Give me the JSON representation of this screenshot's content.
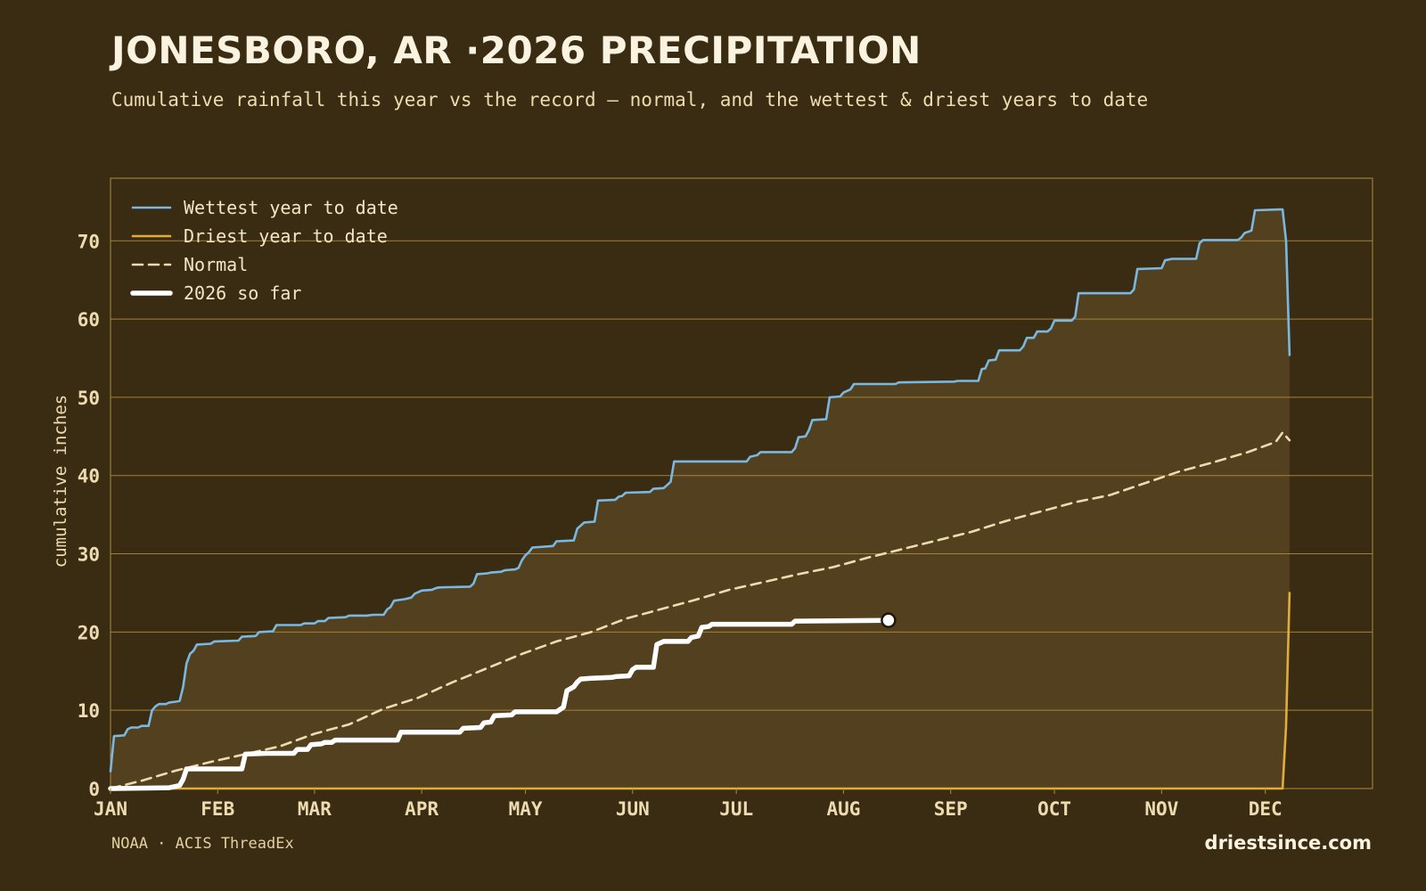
{
  "header": {
    "title": "JONESBORO, AR ·2026 PRECIPITATION",
    "subtitle": "Cumulative rainfall this year vs the record — normal, and the wettest & driest years to date"
  },
  "footer": {
    "source": "NOAA · ACIS ThreadEx",
    "site": "driestsince.com"
  },
  "colors": {
    "background": "#3a2c13",
    "wettest": "#7ab8e0",
    "driest": "#e0ac3c",
    "normal": "#eedcb0",
    "current": "#ffffff",
    "band_fill": "#53401e",
    "frame": "#b08a3a",
    "tick_text": "#eedcb0"
  },
  "chart_data": {
    "type": "line",
    "ylabel": "cumulative inches",
    "xlabel": "",
    "x_unit": "day_of_year",
    "xlim": [
      1,
      366
    ],
    "ylim": [
      0,
      78
    ],
    "y_ticks": [
      0,
      10,
      20,
      30,
      40,
      50,
      60,
      70
    ],
    "x_ticks": [
      {
        "label": "JAN",
        "day": 1
      },
      {
        "label": "FEB",
        "day": 32
      },
      {
        "label": "MAR",
        "day": 60
      },
      {
        "label": "APR",
        "day": 91
      },
      {
        "label": "MAY",
        "day": 121
      },
      {
        "label": "JUN",
        "day": 152
      },
      {
        "label": "JUL",
        "day": 182
      },
      {
        "label": "AUG",
        "day": 213
      },
      {
        "label": "SEP",
        "day": 244
      },
      {
        "label": "OCT",
        "day": 274
      },
      {
        "label": "NOV",
        "day": 305
      },
      {
        "label": "DEC",
        "day": 335
      }
    ],
    "grid": true,
    "legend_position": "top-left",
    "series": [
      {
        "name": "Wettest year to date",
        "style": "solid",
        "points": [
          [
            1,
            2.2
          ],
          [
            2,
            6.7
          ],
          [
            5,
            6.8
          ],
          [
            6,
            7.6
          ],
          [
            7,
            7.8
          ],
          [
            9,
            7.8
          ],
          [
            10,
            8.0
          ],
          [
            12,
            8.0
          ],
          [
            13,
            10.0
          ],
          [
            14,
            10.5
          ],
          [
            15,
            10.8
          ],
          [
            17,
            10.8
          ],
          [
            18,
            11.0
          ],
          [
            20,
            11.1
          ],
          [
            21,
            11.2
          ],
          [
            22,
            13.0
          ],
          [
            23,
            16.0
          ],
          [
            24,
            17.2
          ],
          [
            25,
            17.6
          ],
          [
            26,
            18.4
          ],
          [
            30,
            18.5
          ],
          [
            31,
            18.8
          ],
          [
            38,
            18.9
          ],
          [
            39,
            19.4
          ],
          [
            43,
            19.5
          ],
          [
            44,
            20.0
          ],
          [
            48,
            20.1
          ],
          [
            49,
            20.9
          ],
          [
            56,
            20.9
          ],
          [
            57,
            21.1
          ],
          [
            60,
            21.1
          ],
          [
            61,
            21.4
          ],
          [
            63,
            21.4
          ],
          [
            64,
            21.8
          ],
          [
            69,
            21.9
          ],
          [
            70,
            22.1
          ],
          [
            75,
            22.1
          ],
          [
            77,
            22.2
          ],
          [
            80,
            22.2
          ],
          [
            81,
            22.9
          ],
          [
            82,
            23.2
          ],
          [
            83,
            24.0
          ],
          [
            86,
            24.2
          ],
          [
            88,
            24.4
          ],
          [
            89,
            24.9
          ],
          [
            90,
            25.1
          ],
          [
            91,
            25.3
          ],
          [
            94,
            25.4
          ],
          [
            95,
            25.6
          ],
          [
            96,
            25.7
          ],
          [
            105,
            25.8
          ],
          [
            106,
            26.2
          ],
          [
            107,
            27.4
          ],
          [
            110,
            27.5
          ],
          [
            111,
            27.6
          ],
          [
            114,
            27.7
          ],
          [
            115,
            27.9
          ],
          [
            118,
            28.0
          ],
          [
            119,
            28.2
          ],
          [
            120,
            29.2
          ],
          [
            121,
            29.8
          ],
          [
            122,
            30.2
          ],
          [
            123,
            30.8
          ],
          [
            129,
            31.0
          ],
          [
            130,
            31.6
          ],
          [
            135,
            31.7
          ],
          [
            136,
            33.2
          ],
          [
            137,
            33.6
          ],
          [
            138,
            34.0
          ],
          [
            141,
            34.1
          ],
          [
            142,
            36.8
          ],
          [
            147,
            36.9
          ],
          [
            148,
            37.3
          ],
          [
            149,
            37.4
          ],
          [
            150,
            37.8
          ],
          [
            157,
            37.9
          ],
          [
            158,
            38.3
          ],
          [
            161,
            38.4
          ],
          [
            162,
            38.8
          ],
          [
            163,
            39.2
          ],
          [
            164,
            41.8
          ],
          [
            185,
            41.8
          ],
          [
            186,
            42.4
          ],
          [
            188,
            42.6
          ],
          [
            189,
            43.0
          ],
          [
            198,
            43.0
          ],
          [
            199,
            43.5
          ],
          [
            200,
            44.9
          ],
          [
            202,
            45.0
          ],
          [
            203,
            45.8
          ],
          [
            204,
            47.1
          ],
          [
            208,
            47.2
          ],
          [
            209,
            50.0
          ],
          [
            212,
            50.1
          ],
          [
            213,
            50.6
          ],
          [
            215,
            51.0
          ],
          [
            216,
            51.7
          ],
          [
            228,
            51.7
          ],
          [
            229,
            51.9
          ],
          [
            245,
            52.0
          ],
          [
            246,
            52.1
          ],
          [
            252,
            52.1
          ],
          [
            253,
            53.6
          ],
          [
            254,
            53.7
          ],
          [
            255,
            54.7
          ],
          [
            257,
            54.8
          ],
          [
            258,
            56.0
          ],
          [
            264,
            56.0
          ],
          [
            265,
            56.5
          ],
          [
            266,
            57.6
          ],
          [
            268,
            57.6
          ],
          [
            269,
            58.4
          ],
          [
            272,
            58.4
          ],
          [
            273,
            58.8
          ],
          [
            274,
            59.8
          ],
          [
            279,
            59.8
          ],
          [
            280,
            60.3
          ],
          [
            281,
            63.3
          ],
          [
            296,
            63.3
          ],
          [
            297,
            63.8
          ],
          [
            298,
            66.4
          ],
          [
            305,
            66.5
          ],
          [
            306,
            67.5
          ],
          [
            308,
            67.7
          ],
          [
            315,
            67.7
          ],
          [
            316,
            69.7
          ],
          [
            317,
            70.1
          ],
          [
            327,
            70.1
          ],
          [
            328,
            70.4
          ],
          [
            329,
            71.0
          ],
          [
            331,
            71.3
          ],
          [
            332,
            73.9
          ],
          [
            339,
            74.0
          ],
          [
            340,
            74.0
          ],
          [
            341,
            70.0
          ],
          [
            342,
            55.4
          ]
        ]
      },
      {
        "name": "Driest year to date",
        "style": "solid",
        "points": [
          [
            1,
            0
          ],
          [
            340,
            0
          ],
          [
            341,
            8.0
          ],
          [
            342,
            25.0
          ]
        ]
      },
      {
        "name": "Normal",
        "style": "dashed",
        "points": [
          [
            1,
            0
          ],
          [
            10,
            1.0
          ],
          [
            20,
            2.3
          ],
          [
            30,
            3.4
          ],
          [
            40,
            4.4
          ],
          [
            50,
            5.4
          ],
          [
            60,
            7.0
          ],
          [
            70,
            8.2
          ],
          [
            80,
            10.2
          ],
          [
            90,
            11.6
          ],
          [
            100,
            13.6
          ],
          [
            110,
            15.4
          ],
          [
            120,
            17.2
          ],
          [
            130,
            18.8
          ],
          [
            140,
            20.0
          ],
          [
            150,
            21.7
          ],
          [
            160,
            22.9
          ],
          [
            170,
            24.1
          ],
          [
            180,
            25.4
          ],
          [
            190,
            26.4
          ],
          [
            200,
            27.4
          ],
          [
            210,
            28.3
          ],
          [
            220,
            29.5
          ],
          [
            230,
            30.6
          ],
          [
            240,
            31.7
          ],
          [
            250,
            32.8
          ],
          [
            260,
            34.2
          ],
          [
            270,
            35.4
          ],
          [
            280,
            36.6
          ],
          [
            290,
            37.5
          ],
          [
            300,
            39.0
          ],
          [
            310,
            40.5
          ],
          [
            320,
            41.7
          ],
          [
            330,
            43.0
          ],
          [
            338,
            44.3
          ],
          [
            340,
            45.5
          ],
          [
            342,
            44.5
          ]
        ]
      },
      {
        "name": "2026 so far",
        "style": "bold",
        "points": [
          [
            1,
            0
          ],
          [
            18,
            0.1
          ],
          [
            20,
            0.3
          ],
          [
            21,
            0.4
          ],
          [
            22,
            1.2
          ],
          [
            23,
            2.5
          ],
          [
            39,
            2.5
          ],
          [
            40,
            4.4
          ],
          [
            46,
            4.5
          ],
          [
            54,
            4.5
          ],
          [
            55,
            5.0
          ],
          [
            58,
            5.0
          ],
          [
            59,
            5.6
          ],
          [
            62,
            5.7
          ],
          [
            63,
            5.9
          ],
          [
            65,
            5.9
          ],
          [
            66,
            6.2
          ],
          [
            84,
            6.2
          ],
          [
            85,
            7.2
          ],
          [
            102,
            7.2
          ],
          [
            103,
            7.7
          ],
          [
            108,
            7.8
          ],
          [
            109,
            8.4
          ],
          [
            111,
            8.5
          ],
          [
            112,
            9.3
          ],
          [
            117,
            9.4
          ],
          [
            118,
            9.8
          ],
          [
            130,
            9.8
          ],
          [
            131,
            10.1
          ],
          [
            132,
            10.4
          ],
          [
            133,
            12.5
          ],
          [
            135,
            13.0
          ],
          [
            136,
            13.6
          ],
          [
            137,
            14.0
          ],
          [
            140,
            14.1
          ],
          [
            146,
            14.2
          ],
          [
            147,
            14.3
          ],
          [
            151,
            14.4
          ],
          [
            152,
            15.2
          ],
          [
            153,
            15.5
          ],
          [
            158,
            15.5
          ],
          [
            159,
            18.4
          ],
          [
            161,
            18.8
          ],
          [
            168,
            18.8
          ],
          [
            169,
            19.3
          ],
          [
            171,
            19.5
          ],
          [
            172,
            20.6
          ],
          [
            174,
            20.7
          ],
          [
            175,
            21.0
          ],
          [
            183,
            21.0
          ],
          [
            198,
            21.0
          ],
          [
            199,
            21.4
          ],
          [
            226,
            21.5
          ]
        ]
      }
    ],
    "current_point": {
      "day": 226,
      "value": 21.5
    }
  }
}
